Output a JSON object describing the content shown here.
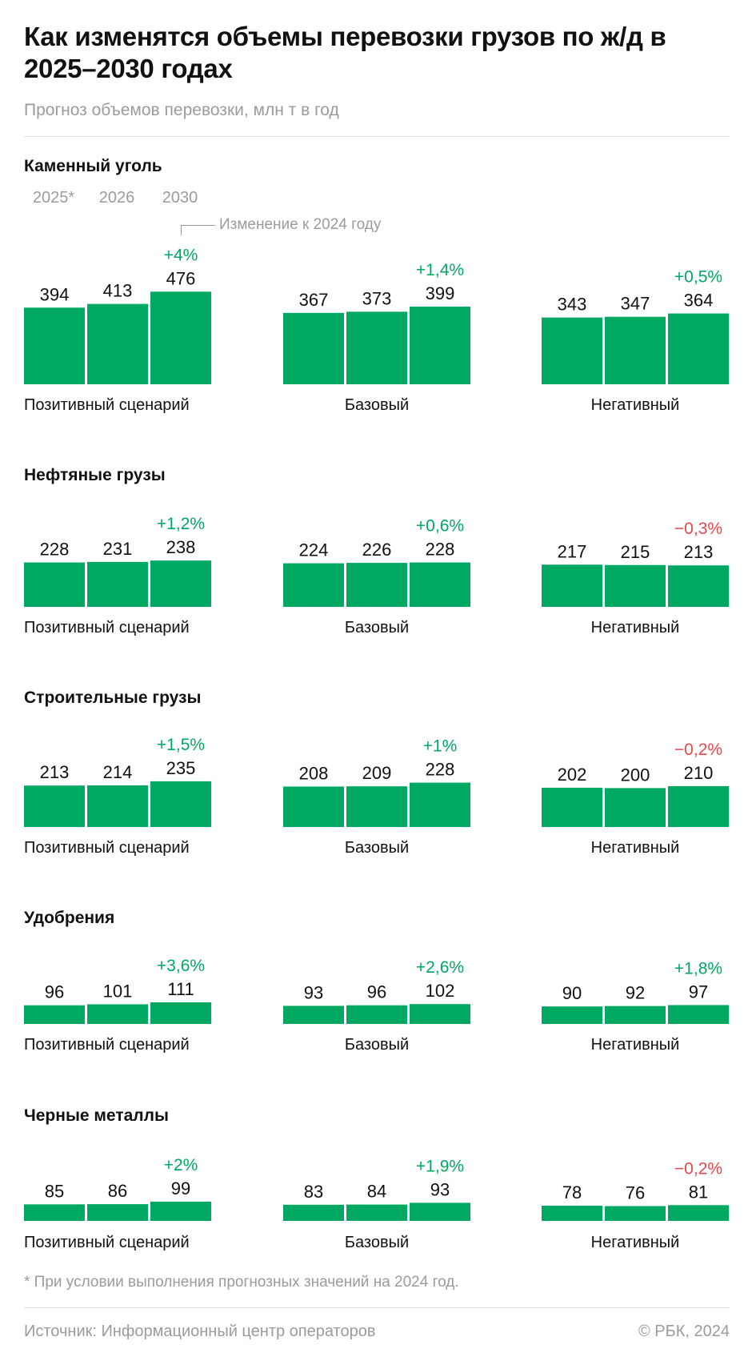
{
  "title": "Как изменятся объемы перевозки грузов по ж/д в 2025–2030 годах",
  "subtitle": "Прогноз объемов перевозки, млн т в год",
  "years": [
    "2025*",
    "2026",
    "2030"
  ],
  "change_note": "Изменение к 2024 году",
  "footnote": "* При условии выполнения прогнозных значений на 2024 год.",
  "source": "Источник: Информационный центр операторов",
  "copyright": "© РБК, 2024",
  "colors": {
    "bar": "#00a862",
    "positive": "#00a862",
    "negative": "#e5484d"
  },
  "chart_data": [
    {
      "type": "bar",
      "title": "Каменный уголь",
      "categories": [
        "2025*",
        "2026",
        "2030"
      ],
      "series": [
        {
          "name": "Позитивный сценарий",
          "values": [
            394,
            413,
            476
          ],
          "change": "+4%"
        },
        {
          "name": "Базовый",
          "values": [
            367,
            373,
            399
          ],
          "change": "+1,4%"
        },
        {
          "name": "Негативный",
          "values": [
            343,
            347,
            364
          ],
          "change": "+0,5%"
        }
      ]
    },
    {
      "type": "bar",
      "title": "Нефтяные грузы",
      "categories": [
        "2025*",
        "2026",
        "2030"
      ],
      "series": [
        {
          "name": "Позитивный сценарий",
          "values": [
            228,
            231,
            238
          ],
          "change": "+1,2%"
        },
        {
          "name": "Базовый",
          "values": [
            224,
            226,
            228
          ],
          "change": "+0,6%"
        },
        {
          "name": "Негативный",
          "values": [
            217,
            215,
            213
          ],
          "change": "−0,3%"
        }
      ]
    },
    {
      "type": "bar",
      "title": "Строительные грузы",
      "categories": [
        "2025*",
        "2026",
        "2030"
      ],
      "series": [
        {
          "name": "Позитивный сценарий",
          "values": [
            213,
            214,
            235
          ],
          "change": "+1,5%"
        },
        {
          "name": "Базовый",
          "values": [
            208,
            209,
            228
          ],
          "change": "+1%"
        },
        {
          "name": "Негативный",
          "values": [
            202,
            200,
            210
          ],
          "change": "−0,2%"
        }
      ]
    },
    {
      "type": "bar",
      "title": "Удобрения",
      "categories": [
        "2025*",
        "2026",
        "2030"
      ],
      "series": [
        {
          "name": "Позитивный сценарий",
          "values": [
            96,
            101,
            111
          ],
          "change": "+3,6%"
        },
        {
          "name": "Базовый",
          "values": [
            93,
            96,
            102
          ],
          "change": "+2,6%"
        },
        {
          "name": "Негативный",
          "values": [
            90,
            92,
            97
          ],
          "change": "+1,8%"
        }
      ]
    },
    {
      "type": "bar",
      "title": "Черные металлы",
      "categories": [
        "2025*",
        "2026",
        "2030"
      ],
      "series": [
        {
          "name": "Позитивный сценарий",
          "values": [
            85,
            86,
            99
          ],
          "change": "+2%"
        },
        {
          "name": "Базовый",
          "values": [
            83,
            84,
            93
          ],
          "change": "+1,9%"
        },
        {
          "name": "Негативный",
          "values": [
            78,
            76,
            81
          ],
          "change": "−0,2%"
        }
      ]
    }
  ]
}
